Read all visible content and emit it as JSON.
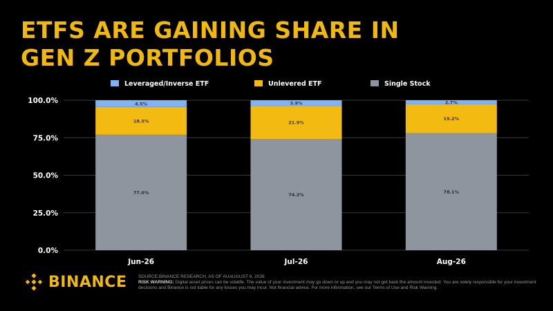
{
  "colors": {
    "accent": "#F0B90B",
    "leveraged": "#7FB3F5",
    "unlevered": "#F3BA12",
    "single": "#8E959F",
    "grid": "#3a3a3a",
    "text": "#ffffff"
  },
  "header": {
    "title_line1": "ETFS ARE GAINING SHARE IN",
    "title_line2": "GEN Z PORTFOLIOS"
  },
  "chart_data": {
    "type": "bar",
    "stacked": true,
    "categories": [
      "Jun-26",
      "Jul-26",
      "Aug-26"
    ],
    "series": [
      {
        "name": "Single Stock",
        "values": [
          77.0,
          74.2,
          78.1
        ],
        "labels": [
          "77.0%",
          "74.2%",
          "78.1%"
        ]
      },
      {
        "name": "Unlevered ETF",
        "values": [
          18.5,
          21.9,
          19.2
        ],
        "labels": [
          "18.5%",
          "21.9%",
          "19.2%"
        ]
      },
      {
        "name": "Leveraged/Inverse ETF",
        "values": [
          4.5,
          3.9,
          2.7
        ],
        "labels": [
          "4.5%",
          "3.9%",
          "2.7%"
        ]
      }
    ],
    "legend_order": [
      "Leveraged/Inverse ETF",
      "Unlevered ETF",
      "Single Stock"
    ],
    "legend_position": "top",
    "ylim": [
      0,
      100
    ],
    "yticks": [
      0,
      25,
      50,
      75,
      100
    ],
    "ytick_labels": [
      "0.0%",
      "25.0%",
      "50.0%",
      "75.0%",
      "100.0%"
    ],
    "grid": true,
    "title": "",
    "xlabel": "",
    "ylabel": ""
  },
  "footer": {
    "brand": "BINANCE",
    "brand_icon": "binance-diamond-icon",
    "source": "SOURCE:BINANCE RESEARCH, AS OF AUAUGUST 6, 2026",
    "risk_label": "RISK WARNING:",
    "risk_text": " Digital asset prices can be volatile. The value of your investment may go down or up and you may not get back the amount invested. You are solely responsible for your investment decisions and Binance is not liable for any losses you may incur. Not financial advice. For more information, see our Terms of Use and Risk Warning."
  }
}
